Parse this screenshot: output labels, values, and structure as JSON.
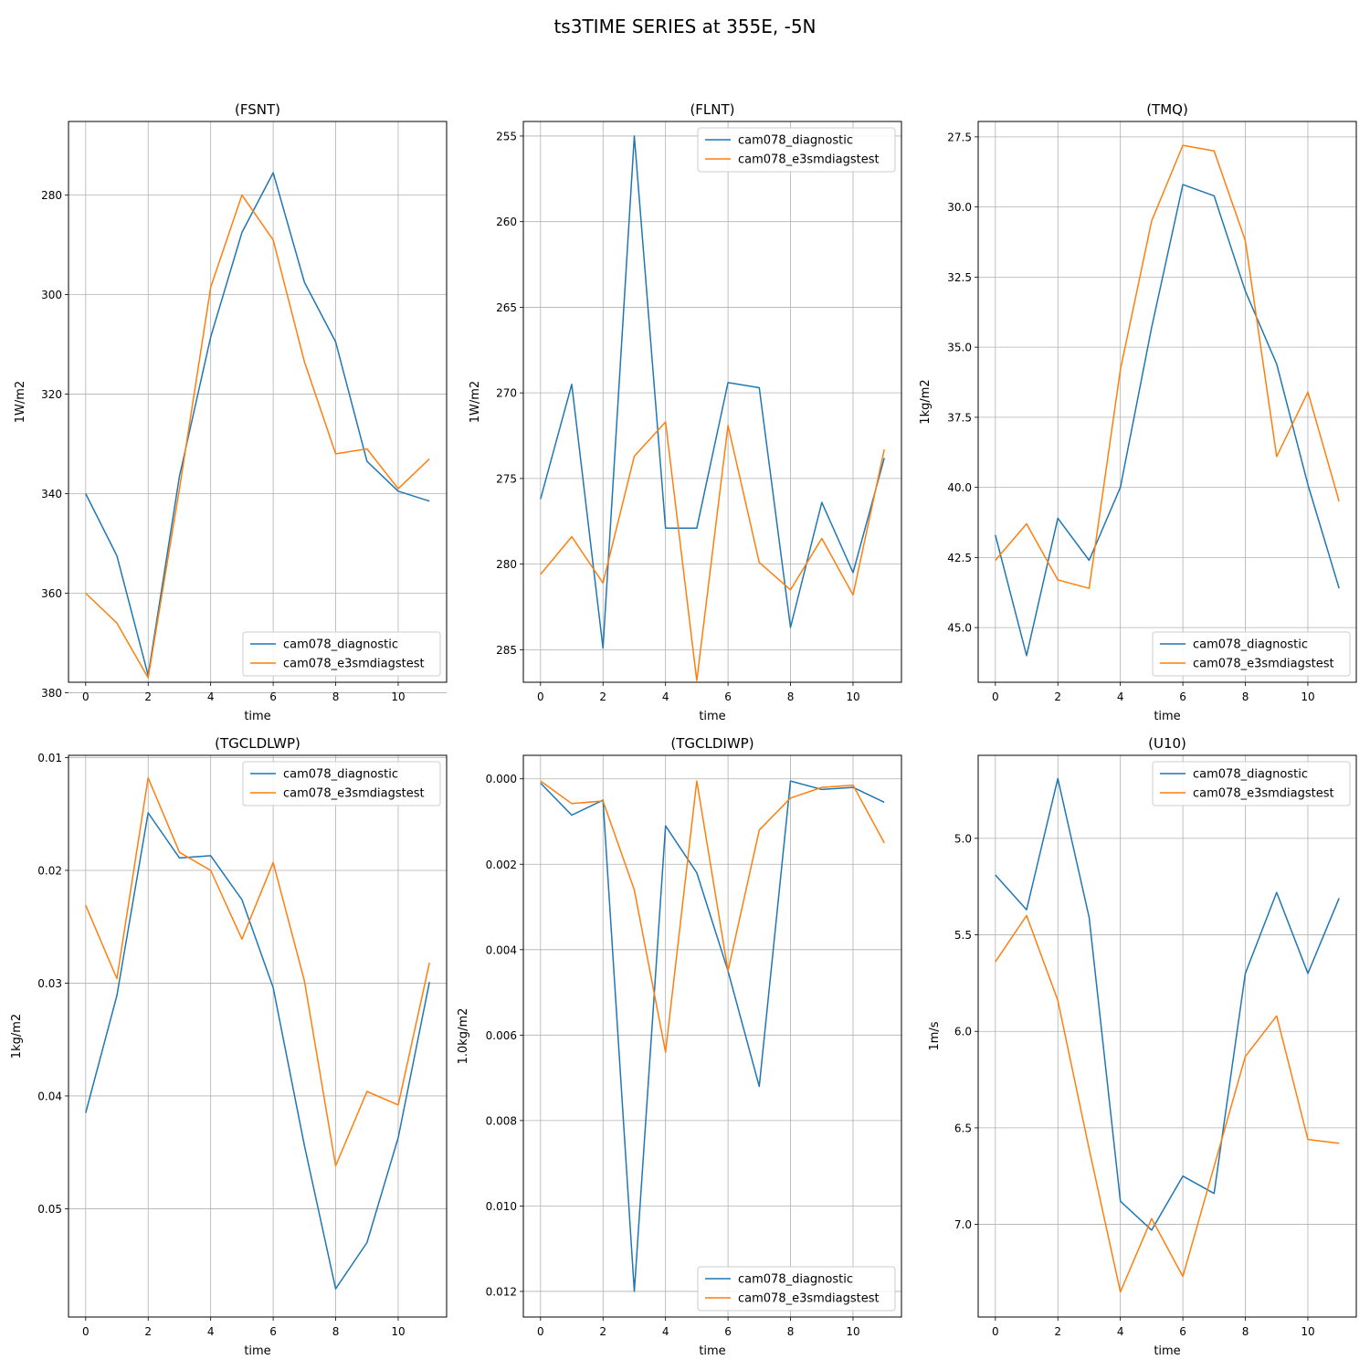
{
  "figure_title": "ts3TIME SERIES at 355E, -5N",
  "colors": {
    "series_1": "#1f77b4",
    "series_2": "#ff7f0e",
    "grid": "#b0b0b0"
  },
  "chart_data": [
    {
      "type": "line",
      "title": "(FSNT)",
      "xlabel": "time",
      "ylabel": "1W/m2",
      "y_inverted": true,
      "xlim": [
        -0.55,
        11.55
      ],
      "ylim": [
        377.9,
        265.2
      ],
      "x_ticks": [
        0,
        2,
        4,
        6,
        8,
        10
      ],
      "x_tick_labels": [
        "0",
        "2",
        "4",
        "6",
        "8",
        "10"
      ],
      "y_ticks": [
        280,
        300,
        320,
        340,
        360,
        380
      ],
      "y_tick_labels": [
        "280",
        "300",
        "320",
        "340",
        "360",
        "380"
      ],
      "grid": true,
      "legend_position": "lower right",
      "x": [
        0,
        1,
        2,
        3,
        4,
        5,
        6,
        7,
        8,
        9,
        10,
        11
      ],
      "series": [
        {
          "name": "cam078_diagnostic",
          "color": "#1f77b4",
          "values": [
            340,
            352.5,
            376.5,
            336.5,
            308.5,
            287.5,
            275.5,
            297.5,
            309.5,
            333.5,
            339.5,
            341.5
          ]
        },
        {
          "name": "cam078_e3smdiagstest",
          "color": "#ff7f0e",
          "values": [
            360,
            366,
            377,
            339,
            298.5,
            280,
            289,
            313.5,
            332,
            331,
            339,
            333
          ]
        }
      ]
    },
    {
      "type": "line",
      "title": "(FLNT)",
      "xlabel": "time",
      "ylabel": "1W/m2",
      "y_inverted": true,
      "xlim": [
        -0.55,
        11.55
      ],
      "ylim": [
        286.9,
        254.15
      ],
      "x_ticks": [
        0,
        2,
        4,
        6,
        8,
        10
      ],
      "x_tick_labels": [
        "0",
        "2",
        "4",
        "6",
        "8",
        "10"
      ],
      "y_ticks": [
        255,
        260,
        265,
        270,
        275,
        280,
        285
      ],
      "y_tick_labels": [
        "255",
        "260",
        "265",
        "270",
        "275",
        "280",
        "285"
      ],
      "grid": true,
      "legend_position": "upper right",
      "x": [
        0,
        1,
        2,
        3,
        4,
        5,
        6,
        7,
        8,
        9,
        10,
        11
      ],
      "series": [
        {
          "name": "cam078_diagnostic",
          "color": "#1f77b4",
          "values": [
            276.2,
            269.5,
            284.9,
            255,
            277.9,
            277.9,
            269.4,
            269.7,
            283.7,
            276.4,
            280.5,
            273.8
          ]
        },
        {
          "name": "cam078_e3smdiagstest",
          "color": "#ff7f0e",
          "values": [
            280.6,
            278.4,
            281.1,
            273.7,
            271.7,
            286.8,
            271.9,
            279.9,
            281.5,
            278.5,
            281.8,
            273.3
          ]
        }
      ]
    },
    {
      "type": "line",
      "title": "(TMQ)",
      "xlabel": "time",
      "ylabel": "1kg/m2",
      "y_inverted": true,
      "xlim": [
        -0.55,
        11.55
      ],
      "ylim": [
        46.95,
        26.95
      ],
      "x_ticks": [
        0,
        2,
        4,
        6,
        8,
        10
      ],
      "x_tick_labels": [
        "0",
        "2",
        "4",
        "6",
        "8",
        "10"
      ],
      "y_ticks": [
        27.5,
        30,
        32.5,
        35,
        37.5,
        40,
        42.5,
        45
      ],
      "y_tick_labels": [
        "27.5",
        "30.0",
        "32.5",
        "35.0",
        "37.5",
        "40.0",
        "42.5",
        "45.0"
      ],
      "grid": true,
      "legend_position": "lower right",
      "x": [
        0,
        1,
        2,
        3,
        4,
        5,
        6,
        7,
        8,
        9,
        10,
        11
      ],
      "series": [
        {
          "name": "cam078_diagnostic",
          "color": "#1f77b4",
          "values": [
            41.7,
            46,
            41.1,
            42.6,
            40,
            34.3,
            29.2,
            29.6,
            33,
            35.6,
            39.9,
            43.6
          ]
        },
        {
          "name": "cam078_e3smdiagstest",
          "color": "#ff7f0e",
          "values": [
            42.6,
            41.3,
            43.3,
            43.6,
            35.8,
            30.5,
            27.8,
            28,
            31.2,
            38.9,
            36.6,
            40.5
          ]
        }
      ]
    },
    {
      "type": "line",
      "title": "(TGCLDLWP)",
      "xlabel": "time",
      "ylabel": "1kg/m2",
      "y_inverted": true,
      "xlim": [
        -0.55,
        11.55
      ],
      "ylim": [
        0.0596,
        0.0098
      ],
      "x_ticks": [
        0,
        2,
        4,
        6,
        8,
        10
      ],
      "x_tick_labels": [
        "0",
        "2",
        "4",
        "6",
        "8",
        "10"
      ],
      "y_ticks": [
        0.01,
        0.02,
        0.03,
        0.04,
        0.05
      ],
      "y_tick_labels": [
        "0.01",
        "0.02",
        "0.03",
        "0.04",
        "0.05"
      ],
      "grid": true,
      "legend_position": "upper right",
      "x": [
        0,
        1,
        2,
        3,
        4,
        5,
        6,
        7,
        8,
        9,
        10,
        11
      ],
      "series": [
        {
          "name": "cam078_diagnostic",
          "color": "#1f77b4",
          "values": [
            0.0415,
            0.0311,
            0.0149,
            0.0189,
            0.0187,
            0.0226,
            0.0304,
            0.0444,
            0.0571,
            0.053,
            0.0437,
            0.0299
          ]
        },
        {
          "name": "cam078_e3smdiagstest",
          "color": "#ff7f0e",
          "values": [
            0.0231,
            0.0296,
            0.0118,
            0.0184,
            0.02,
            0.0261,
            0.0193,
            0.0298,
            0.0462,
            0.0396,
            0.0408,
            0.0282
          ]
        }
      ]
    },
    {
      "type": "line",
      "title": "(TGCLDIWP)",
      "xlabel": "time",
      "ylabel": "1.0kg/m2",
      "y_inverted": true,
      "xlim": [
        -0.55,
        11.55
      ],
      "ylim": [
        0.0126,
        -0.00055
      ],
      "x_ticks": [
        0,
        2,
        4,
        6,
        8,
        10
      ],
      "x_tick_labels": [
        "0",
        "2",
        "4",
        "6",
        "8",
        "10"
      ],
      "y_ticks": [
        0,
        0.002,
        0.004,
        0.006,
        0.008,
        0.01,
        0.012
      ],
      "y_tick_labels": [
        "0.000",
        "0.002",
        "0.004",
        "0.006",
        "0.008",
        "0.010",
        "0.012"
      ],
      "grid": true,
      "legend_position": "lower right",
      "x": [
        0,
        1,
        2,
        3,
        4,
        5,
        6,
        7,
        8,
        9,
        10,
        11
      ],
      "series": [
        {
          "name": "cam078_diagnostic",
          "color": "#1f77b4",
          "values": [
            0.0001,
            0.00085,
            0.0005,
            0.012,
            0.0011,
            0.0022,
            0.0045,
            0.0072,
            5e-05,
            0.00025,
            0.0002,
            0.00055
          ]
        },
        {
          "name": "cam078_e3smdiagstest",
          "color": "#ff7f0e",
          "values": [
            5e-05,
            0.00058,
            0.00052,
            0.0026,
            0.0064,
            5e-05,
            0.0045,
            0.0012,
            0.00045,
            0.0002,
            0.00015,
            0.0015
          ]
        }
      ]
    },
    {
      "type": "line",
      "title": "(U10)",
      "xlabel": "time",
      "ylabel": "1m/s",
      "y_inverted": true,
      "xlim": [
        -0.55,
        11.55
      ],
      "ylim": [
        7.48,
        4.57
      ],
      "x_ticks": [
        0,
        2,
        4,
        6,
        8,
        10
      ],
      "x_tick_labels": [
        "0",
        "2",
        "4",
        "6",
        "8",
        "10"
      ],
      "y_ticks": [
        5,
        5.5,
        6,
        6.5,
        7
      ],
      "y_tick_labels": [
        "5.0",
        "5.5",
        "6.0",
        "6.5",
        "7.0"
      ],
      "grid": true,
      "legend_position": "upper right",
      "x": [
        0,
        1,
        2,
        3,
        4,
        5,
        6,
        7,
        8,
        9,
        10,
        11
      ],
      "series": [
        {
          "name": "cam078_diagnostic",
          "color": "#1f77b4",
          "values": [
            5.19,
            5.37,
            4.69,
            5.41,
            6.88,
            7.03,
            6.75,
            6.84,
            5.7,
            5.28,
            5.7,
            5.31
          ]
        },
        {
          "name": "cam078_e3smdiagstest",
          "color": "#ff7f0e",
          "values": [
            5.64,
            5.4,
            5.84,
            6.61,
            7.35,
            6.97,
            7.27,
            6.7,
            6.13,
            5.92,
            6.56,
            6.58
          ]
        }
      ]
    }
  ]
}
